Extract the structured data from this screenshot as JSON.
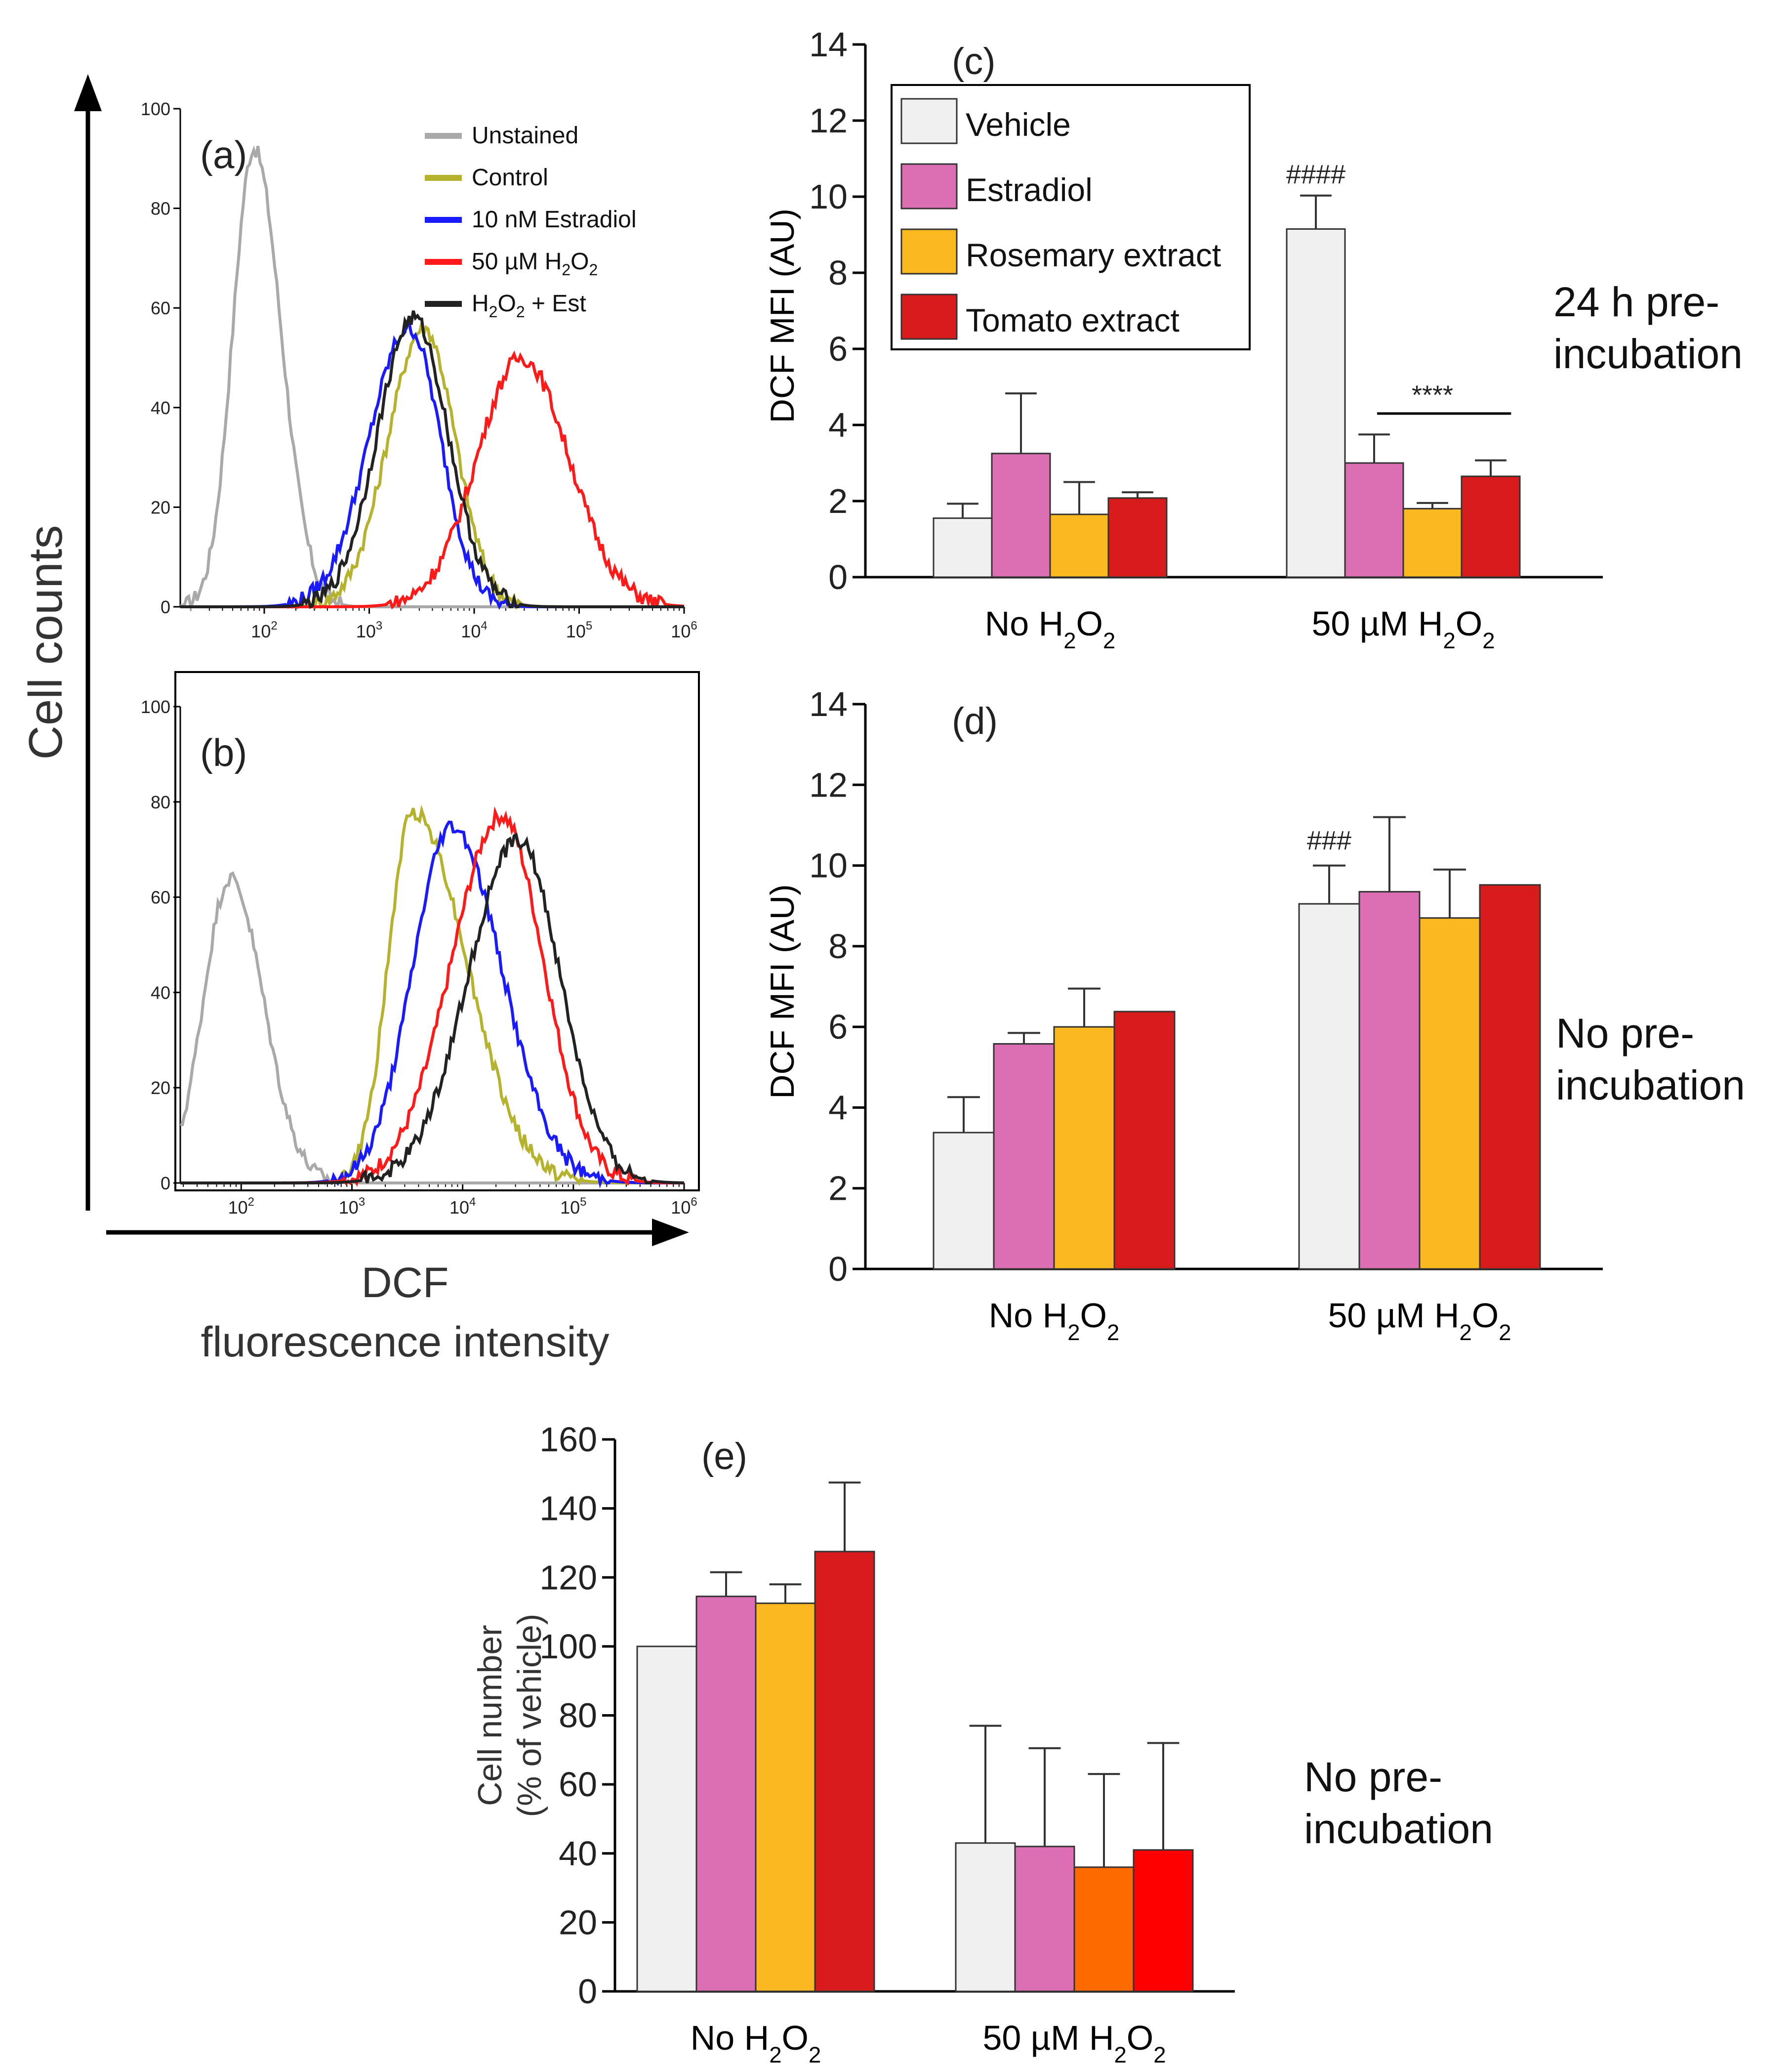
{
  "figure": {
    "cell_counts_label": "Cell counts",
    "dcf_label_line1": "DCF",
    "dcf_label_line2": "fluorescence intensity"
  },
  "colors": {
    "vehicle": "#f0f0f0",
    "estradiol": "#dc6fb4",
    "rosemary": "#fbb81f",
    "tomato": "#d81c1c",
    "rosemary_alt": "#ff6a00",
    "tomato_alt": "#ff0000",
    "unstained": "#a9a9a9",
    "control": "#b5b32e",
    "estradiol_line": "#1a1aff",
    "h2o2_line": "#ff1a1a",
    "combo_line": "#222222"
  },
  "chart_data": [
    {
      "id": "a",
      "type": "line",
      "panel_label": "(a)",
      "x_scale": "log10",
      "xlim_log10": [
        1.2,
        6
      ],
      "ylim": [
        0,
        100
      ],
      "y_ticks": [
        "0",
        "20",
        "40",
        "60",
        "80",
        "100"
      ],
      "x_ticks": [
        {
          "base": "10",
          "exp": "2"
        },
        {
          "base": "10",
          "exp": "3"
        },
        {
          "base": "10",
          "exp": "4"
        },
        {
          "base": "10",
          "exp": "5"
        },
        {
          "base": "10",
          "exp": "6"
        }
      ],
      "legend": [
        {
          "label": "Unstained",
          "sub": "",
          "suffix": "",
          "color_key": "unstained"
        },
        {
          "label": "Control",
          "sub": "",
          "suffix": "",
          "color_key": "control"
        },
        {
          "label": "10 nM Estradiol",
          "sub": "",
          "suffix": "",
          "color_key": "estradiol_line"
        },
        {
          "label": "50 µM H",
          "sub": "2",
          "suffix": "O2",
          "color_key": "h2o2_line"
        },
        {
          "label": "H",
          "sub": "2",
          "suffix": "O2 + Est",
          "color_key": "combo_line"
        }
      ],
      "series": [
        {
          "name": "Unstained",
          "color_key": "unstained",
          "peak_log10": 1.9,
          "width": 0.2,
          "height": 92,
          "width_right": 0.26
        },
        {
          "name": "Control",
          "color_key": "control",
          "peak_log10": 3.52,
          "width": 0.34,
          "height": 56,
          "width_right": 0.3
        },
        {
          "name": "10 nM Estradiol",
          "color_key": "estradiol_line",
          "peak_log10": 3.38,
          "width": 0.38,
          "height": 56,
          "width_right": 0.3
        },
        {
          "name": "50 µM H2O2",
          "color_key": "h2o2_line",
          "peak_log10": 4.45,
          "width": 0.42,
          "height": 50,
          "width_right": 0.45
        },
        {
          "name": "H2O2 + Est",
          "color_key": "combo_line",
          "peak_log10": 3.42,
          "width": 0.34,
          "height": 58,
          "width_right": 0.33
        }
      ]
    },
    {
      "id": "b",
      "type": "line",
      "panel_label": "(b)",
      "x_scale": "log10",
      "xlim_log10": [
        1.45,
        6
      ],
      "ylim": [
        0,
        100
      ],
      "y_ticks": [
        "0",
        "20",
        "40",
        "60",
        "80",
        "100"
      ],
      "x_ticks": [
        {
          "base": "10",
          "exp": "2"
        },
        {
          "base": "10",
          "exp": "3"
        },
        {
          "base": "10",
          "exp": "4"
        },
        {
          "base": "10",
          "exp": "5"
        },
        {
          "base": "10",
          "exp": "6"
        }
      ],
      "series": [
        {
          "name": "Unstained",
          "color_key": "unstained",
          "peak_log10": 1.9,
          "width": 0.24,
          "height": 64,
          "width_right": 0.3
        },
        {
          "name": "Control",
          "color_key": "control",
          "peak_log10": 3.55,
          "width": 0.22,
          "height": 78,
          "width_right": 0.48
        },
        {
          "name": "10 nM Estradiol",
          "color_key": "estradiol_line",
          "peak_log10": 3.9,
          "width": 0.35,
          "height": 75,
          "width_right": 0.45
        },
        {
          "name": "50 µM H2O2",
          "color_key": "h2o2_line",
          "peak_log10": 4.35,
          "width": 0.45,
          "height": 77,
          "width_right": 0.38
        },
        {
          "name": "H2O2 + Est",
          "color_key": "combo_line",
          "peak_log10": 4.5,
          "width": 0.45,
          "height": 72,
          "width_right": 0.38
        }
      ]
    },
    {
      "id": "c",
      "type": "bar",
      "panel_label": "(c)",
      "ylabel": "DCF MFI (AU)",
      "ylim": [
        0,
        14
      ],
      "y_ticks": [
        "0",
        "2",
        "4",
        "6",
        "8",
        "10",
        "12",
        "14"
      ],
      "side_label": [
        "24 h pre-",
        "incubation"
      ],
      "groups": [
        {
          "label": "No H",
          "sub": "2",
          "mid": "O",
          "sub2": "2"
        },
        {
          "label": "50 µM H",
          "sub": "2",
          "mid": "O",
          "sub2": "2"
        }
      ],
      "legend": [
        "Vehicle",
        "Estradiol",
        "Rosemary extract",
        "Tomato extract"
      ],
      "series_colors": [
        "vehicle",
        "estradiol",
        "rosemary",
        "tomato"
      ],
      "values": [
        [
          1.55,
          3.25,
          1.65,
          2.08
        ],
        [
          9.15,
          3.0,
          1.8,
          2.65
        ]
      ],
      "errors": [
        [
          0.38,
          1.58,
          0.85,
          0.15
        ],
        [
          0.88,
          0.75,
          0.15,
          0.42
        ]
      ],
      "annotations": [
        {
          "text": "####",
          "group": 1,
          "bar": 0,
          "at_value": 10.35
        },
        {
          "text": "****",
          "group": 1,
          "bar": 2,
          "at_value": 4.55
        }
      ],
      "bracket": {
        "group": 1,
        "from_bar": 1,
        "to_bar": 3,
        "value": 4.3
      }
    },
    {
      "id": "d",
      "type": "bar",
      "panel_label": "(d)",
      "ylabel": "DCF MFI (AU)",
      "ylim": [
        0,
        14
      ],
      "y_ticks": [
        "0",
        "2",
        "4",
        "6",
        "8",
        "10",
        "12",
        "14"
      ],
      "side_label": [
        "No pre-",
        "incubation"
      ],
      "groups": [
        {
          "label": "No H",
          "sub": "2",
          "mid": "O",
          "sub2": "2"
        },
        {
          "label": "50 µM H",
          "sub": "2",
          "mid": "O",
          "sub2": "2"
        }
      ],
      "series_colors": [
        "vehicle",
        "estradiol",
        "rosemary",
        "tomato"
      ],
      "values": [
        [
          3.38,
          5.58,
          6.0,
          6.38
        ],
        [
          9.05,
          9.35,
          8.7,
          9.52
        ]
      ],
      "errors": [
        [
          0.88,
          0.27,
          0.95,
          0
        ],
        [
          0.95,
          1.85,
          1.2,
          0
        ]
      ],
      "annotations": [
        {
          "text": "###",
          "group": 1,
          "bar": 0,
          "at_value": 10.4
        }
      ]
    },
    {
      "id": "e",
      "type": "bar",
      "panel_label": "(e)",
      "ylabel": [
        "Cell number",
        "(% of vehicle)"
      ],
      "ylim": [
        0,
        160
      ],
      "y_ticks": [
        "0",
        "20",
        "40",
        "60",
        "80",
        "100",
        "120",
        "140",
        "160"
      ],
      "side_label": [
        "No pre-",
        "incubation"
      ],
      "groups": [
        {
          "label": "No H",
          "sub": "2",
          "mid": "O",
          "sub2": "2"
        },
        {
          "label": "50 µM H",
          "sub": "2",
          "mid": "O",
          "sub2": "2"
        }
      ],
      "series_colors_by_group": [
        [
          "vehicle",
          "estradiol",
          "rosemary",
          "tomato"
        ],
        [
          "vehicle",
          "estradiol",
          "rosemary_alt",
          "tomato_alt"
        ]
      ],
      "values": [
        [
          100,
          114.5,
          112.5,
          127.5
        ],
        [
          43,
          42,
          36,
          41
        ]
      ],
      "errors": [
        [
          0,
          7,
          5.5,
          20
        ],
        [
          34,
          28.5,
          27,
          31
        ]
      ]
    }
  ]
}
